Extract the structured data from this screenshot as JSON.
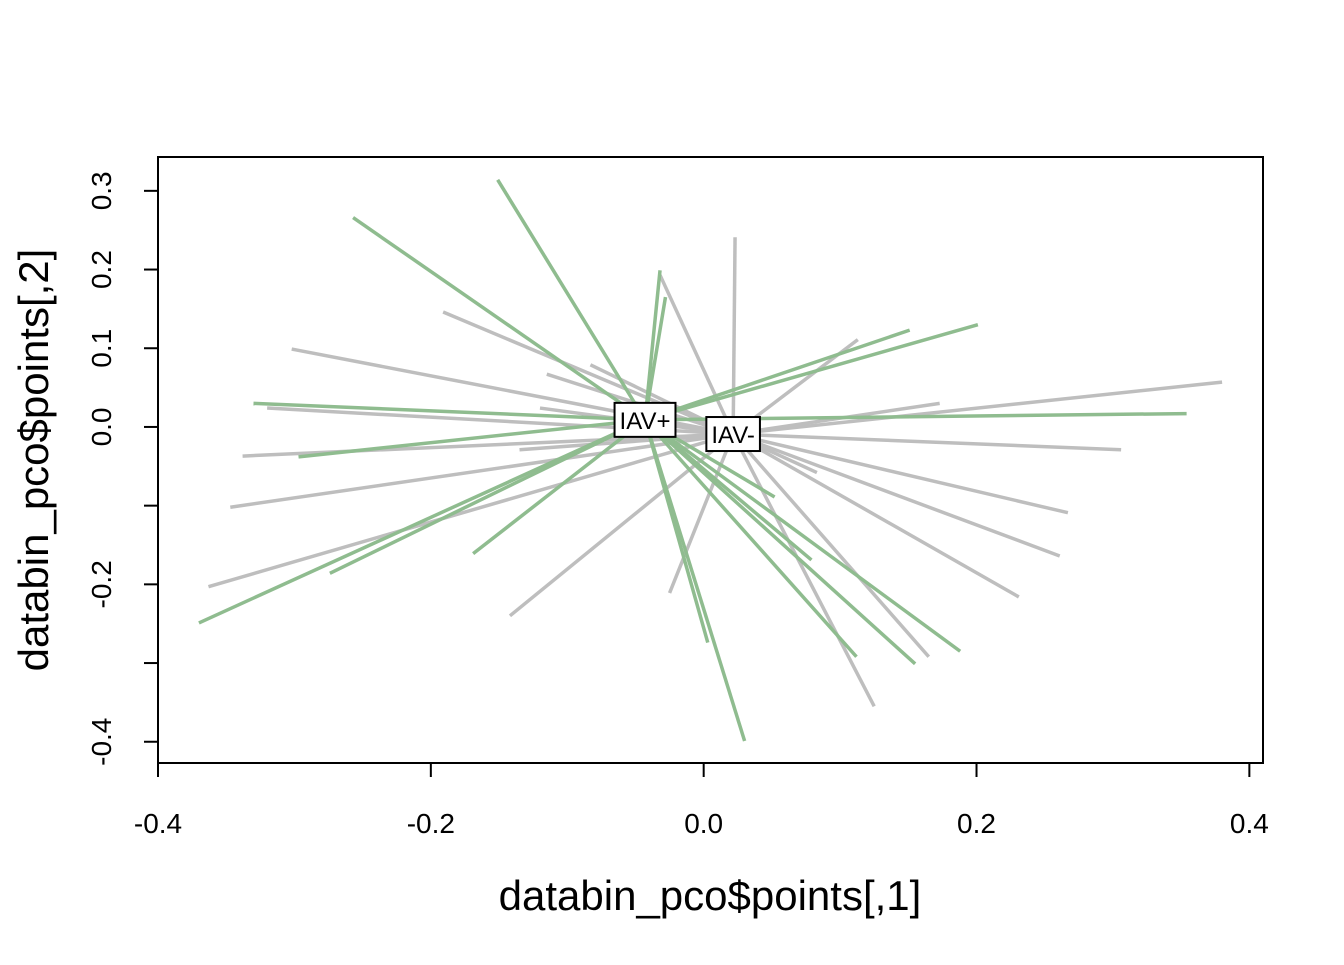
{
  "chart_data": {
    "type": "spider",
    "xlabel": "databin_pco$points[,1]",
    "ylabel": "databin_pco$points[,2]",
    "xlim": [
      -0.4,
      0.41
    ],
    "ylim": [
      -0.427,
      0.343
    ],
    "xticks": [
      -0.4,
      -0.2,
      {
        "value": 0,
        "label": "0.0"
      },
      0.2,
      0.4
    ],
    "yticks": [
      -0.4,
      {
        "value": -0.3
      },
      -0.2,
      {
        "value": -0.1
      },
      {
        "value": 0,
        "label": "0.0"
      },
      0.1,
      0.2,
      0.3
    ],
    "groups": [
      {
        "name": "IAV+",
        "color": "#8fbc8f",
        "centroid_x": -0.043,
        "centroid_y": 0.009,
        "x": [
          -0.151,
          -0.257,
          -0.032,
          -0.028,
          0.151,
          0.201,
          -0.33,
          0.354,
          -0.297,
          -0.169,
          -0.274,
          -0.37,
          0.003,
          0.03,
          0.112,
          0.155,
          0.188,
          0.079,
          0.052
        ],
        "y": [
          0.314,
          0.266,
          0.199,
          0.165,
          0.123,
          0.13,
          0.03,
          0.017,
          -0.038,
          -0.161,
          -0.186,
          -0.249,
          -0.274,
          -0.399,
          -0.292,
          -0.301,
          -0.285,
          -0.169,
          -0.089
        ]
      },
      {
        "name": "IAV-",
        "color": "#bebebe",
        "centroid_x": 0.0216,
        "centroid_y": -0.009,
        "x": [
          0.023,
          -0.191,
          -0.302,
          -0.115,
          -0.083,
          -0.32,
          -0.338,
          -0.347,
          -0.363,
          -0.142,
          -0.025,
          0.125,
          0.165,
          0.231,
          0.261,
          0.267,
          0.306,
          0.38,
          0.173,
          0.113,
          0.083,
          -0.12,
          -0.135,
          -0.032
        ],
        "y": [
          0.241,
          0.146,
          0.099,
          0.067,
          0.079,
          0.024,
          -0.037,
          -0.102,
          -0.203,
          -0.24,
          -0.211,
          -0.355,
          -0.292,
          -0.216,
          -0.164,
          -0.109,
          -0.029,
          0.057,
          0.03,
          0.111,
          -0.058,
          0.024,
          -0.029,
          0.193
        ]
      }
    ]
  }
}
